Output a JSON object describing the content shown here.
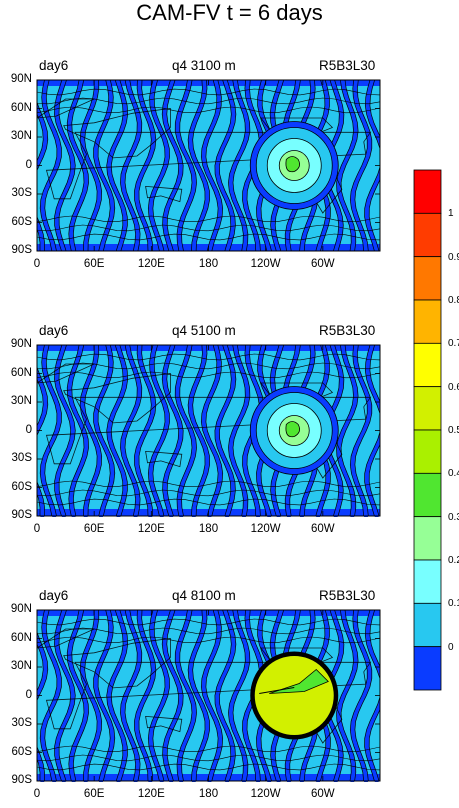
{
  "title": "CAM-FV t = 6 days",
  "panels": [
    {
      "left": "day6",
      "center": "q4 3100 m",
      "right": "R5B3L30"
    },
    {
      "left": "day6",
      "center": "q4 5100 m",
      "right": "R5B3L30"
    },
    {
      "left": "day6",
      "center": "q4 8100 m",
      "right": "R5B3L30"
    }
  ],
  "axes": {
    "y_ticks": [
      "90N",
      "60N",
      "30N",
      "0",
      "30S",
      "60S",
      "90S"
    ],
    "x_ticks": [
      "0",
      "60E",
      "120E",
      "180",
      "120W",
      "60W"
    ]
  },
  "colorbar": {
    "labels": [
      "1",
      "0.9",
      "0.8",
      "0.7",
      "0.6",
      "0.5",
      "0.4",
      "0.3",
      "0.2",
      "0.1",
      "0"
    ],
    "colors_top_to_bottom": [
      "#ff0000",
      "#ff3c00",
      "#ff7800",
      "#ffb400",
      "#ffff00",
      "#d2f000",
      "#aaf000",
      "#50e630",
      "#96ff96",
      "#78ffff",
      "#28c8f0",
      "#0a3cff"
    ]
  },
  "chart_data": [
    {
      "type": "heatmap",
      "title": "q4 3100 m",
      "left_label": "day6",
      "right_label": "R5B3L30",
      "xlim": [
        0,
        360
      ],
      "ylim": [
        -90,
        90
      ],
      "blob": {
        "center_lon": 270,
        "center_lat": 0,
        "levels": [
          0,
          0.1,
          0.2,
          0.3
        ]
      }
    },
    {
      "type": "heatmap",
      "title": "q4 5100 m",
      "left_label": "day6",
      "right_label": "R5B3L30",
      "xlim": [
        0,
        360
      ],
      "ylim": [
        -90,
        90
      ],
      "blob": {
        "center_lon": 270,
        "center_lat": 0,
        "levels": [
          0,
          0.1,
          0.2,
          0.3
        ]
      }
    },
    {
      "type": "heatmap",
      "title": "q4 8100 m",
      "left_label": "day6",
      "right_label": "R5B3L30",
      "xlim": [
        0,
        360
      ],
      "ylim": [
        -90,
        90
      ],
      "blob": {
        "center_lon": 270,
        "center_lat": 0,
        "levels": [
          0.5,
          0.3
        ]
      }
    }
  ]
}
